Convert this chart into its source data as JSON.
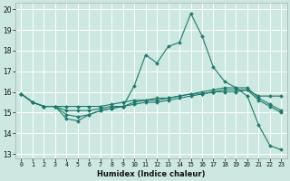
{
  "xlabel": "Humidex (Indice chaleur)",
  "bg_color": "#cce8e0",
  "grid_color": "#ffffff",
  "line_color": "#1a7a6e",
  "xlim": [
    -0.5,
    23.5
  ],
  "ylim": [
    12.8,
    20.3
  ],
  "yticks": [
    13,
    14,
    15,
    16,
    17,
    18,
    19,
    20
  ],
  "xtick_labels": [
    "0",
    "1",
    "2",
    "3",
    "4",
    "5",
    "6",
    "7",
    "8",
    "9",
    "10",
    "11",
    "12",
    "13",
    "14",
    "15",
    "16",
    "17",
    "18",
    "19",
    "20",
    "21",
    "22",
    "23"
  ],
  "series": [
    [
      15.9,
      15.5,
      15.3,
      15.3,
      14.7,
      14.6,
      14.9,
      15.1,
      15.2,
      15.3,
      16.3,
      17.8,
      17.4,
      18.2,
      18.4,
      19.8,
      18.7,
      17.2,
      16.5,
      16.2,
      15.8,
      14.4,
      13.4,
      13.2
    ],
    [
      15.9,
      15.5,
      15.3,
      15.3,
      15.3,
      15.3,
      15.3,
      15.3,
      15.4,
      15.5,
      15.6,
      15.6,
      15.7,
      15.7,
      15.8,
      15.9,
      15.9,
      16.0,
      16.0,
      16.0,
      16.1,
      15.8,
      15.8,
      15.8
    ],
    [
      15.9,
      15.5,
      15.3,
      15.3,
      15.1,
      15.1,
      15.1,
      15.2,
      15.3,
      15.3,
      15.4,
      15.5,
      15.5,
      15.6,
      15.7,
      15.8,
      15.9,
      16.0,
      16.1,
      16.1,
      16.1,
      15.6,
      15.3,
      15.0
    ],
    [
      15.9,
      15.5,
      15.3,
      15.3,
      14.9,
      14.8,
      14.9,
      15.1,
      15.2,
      15.3,
      15.5,
      15.6,
      15.6,
      15.7,
      15.8,
      15.9,
      16.0,
      16.1,
      16.2,
      16.2,
      16.2,
      15.7,
      15.4,
      15.1
    ]
  ]
}
